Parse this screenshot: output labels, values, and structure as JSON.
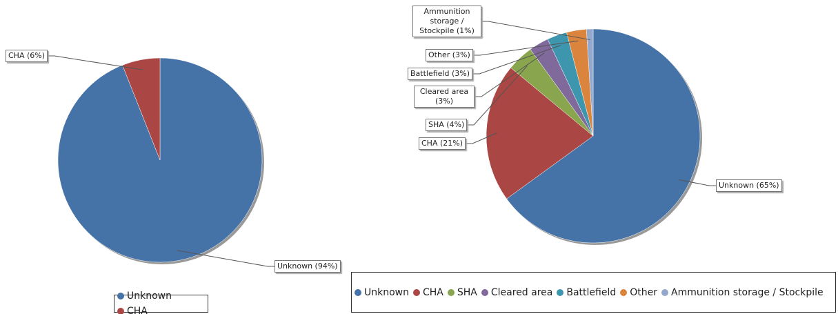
{
  "chart_data": [
    {
      "type": "pie",
      "categories": [
        "Unknown",
        "CHA"
      ],
      "values": [
        94,
        6
      ],
      "value_labels": [
        "Unknown (94%)",
        "CHA (6%)"
      ],
      "colors": [
        "#4572a7",
        "#aa4643"
      ],
      "legend": "bottom"
    },
    {
      "type": "pie",
      "categories": [
        "Unknown",
        "CHA",
        "SHA",
        "Cleared area",
        "Battlefield",
        "Other",
        "Ammunition storage / Stockpile"
      ],
      "values": [
        65,
        21,
        4,
        3,
        3,
        3,
        1
      ],
      "value_labels": [
        "Unknown (65%)",
        "CHA (21%)",
        "SHA (4%)",
        "Cleared area (3%)",
        "Battlefield (3%)",
        "Other (3%)",
        "Ammunition storage / Stockpile (1%)"
      ],
      "colors": [
        "#4572a7",
        "#aa4643",
        "#89a54e",
        "#80699b",
        "#3d96ae",
        "#db843d",
        "#92a8cd"
      ],
      "legend": "bottom"
    }
  ]
}
